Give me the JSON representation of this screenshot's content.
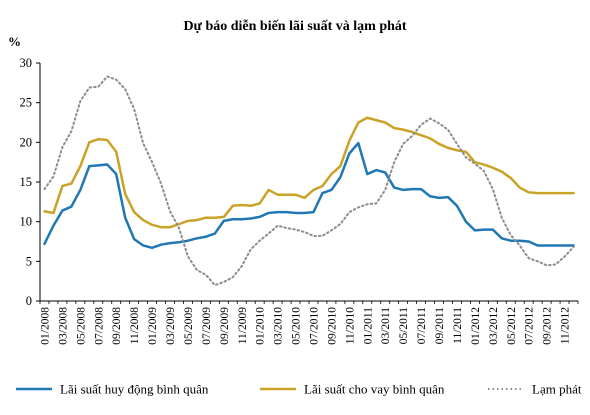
{
  "chart_data": {
    "type": "line",
    "title": "Dự báo diễn biến lãi suất và lạm phát",
    "ylabel": "%",
    "ylim": [
      0,
      30
    ],
    "yticks": [
      0,
      5,
      10,
      15,
      20,
      25,
      30
    ],
    "grid": false,
    "legend_position": "bottom",
    "x": [
      "01/2008",
      "02/2008",
      "03/2008",
      "04/2008",
      "05/2008",
      "06/2008",
      "07/2008",
      "08/2008",
      "09/2008",
      "10/2008",
      "11/2008",
      "12/2008",
      "01/2009",
      "02/2009",
      "03/2009",
      "04/2009",
      "05/2009",
      "06/2009",
      "07/2009",
      "08/2009",
      "09/2009",
      "10/2009",
      "11/2009",
      "12/2009",
      "01/2010",
      "02/2010",
      "03/2010",
      "04/2010",
      "05/2010",
      "06/2010",
      "07/2010",
      "08/2010",
      "09/2010",
      "10/2010",
      "11/2010",
      "12/2010",
      "01/2011",
      "02/2011",
      "03/2011",
      "04/2011",
      "05/2011",
      "06/2011",
      "07/2011",
      "08/2011",
      "09/2011",
      "10/2011",
      "11/2011",
      "12/2011",
      "01/2012",
      "02/2012",
      "03/2012",
      "04/2012",
      "05/2012",
      "06/2012",
      "07/2012",
      "08/2012",
      "09/2012",
      "10/2012",
      "11/2012",
      "12/2012"
    ],
    "xtick_labels": [
      "01/2008",
      "03/2008",
      "05/2008",
      "07/2008",
      "09/2008",
      "11/2008",
      "01/2009",
      "03/2009",
      "05/2009",
      "07/2009",
      "09/2009",
      "11/2009",
      "01/2010",
      "03/2010",
      "05/2010",
      "07/2010",
      "09/2010",
      "11/2010",
      "01/2011",
      "03/2011",
      "05/2011",
      "07/2011",
      "09/2011",
      "11/2011",
      "01/2012",
      "03/2012",
      "05/2012",
      "07/2012",
      "09/2012",
      "11/2012"
    ],
    "series": [
      {
        "name": "Lãi suất huy động bình quân",
        "color": "#1f77b4",
        "style": "solid",
        "values": [
          7.2,
          9.5,
          11.4,
          11.9,
          14.0,
          17.0,
          17.1,
          17.2,
          16.0,
          10.5,
          7.8,
          7.0,
          6.7,
          7.1,
          7.3,
          7.4,
          7.6,
          7.9,
          8.1,
          8.5,
          10.1,
          10.3,
          10.3,
          10.4,
          10.6,
          11.1,
          11.2,
          11.2,
          11.1,
          11.1,
          11.2,
          13.6,
          14.0,
          15.6,
          18.6,
          19.9,
          16.0,
          16.5,
          16.2,
          14.3,
          14.0,
          14.1,
          14.1,
          13.2,
          13.0,
          13.1,
          12.0,
          10.0,
          8.9,
          9.0,
          9.0,
          7.9,
          7.6,
          7.6,
          7.5,
          7.0,
          7.0,
          7.0,
          7.0,
          7.0
        ]
      },
      {
        "name": "Lãi suất cho vay bình quân",
        "color": "#c9a227",
        "style": "solid",
        "values": [
          11.3,
          11.1,
          14.5,
          14.8,
          17.0,
          20.0,
          20.4,
          20.3,
          18.8,
          13.5,
          11.2,
          10.2,
          9.6,
          9.3,
          9.3,
          9.7,
          10.1,
          10.2,
          10.5,
          10.5,
          10.6,
          12.0,
          12.1,
          12.0,
          12.3,
          14.0,
          13.4,
          13.4,
          13.4,
          13.0,
          14.0,
          14.5,
          16.0,
          17.0,
          20.2,
          22.5,
          23.1,
          22.8,
          22.5,
          21.8,
          21.6,
          21.3,
          20.9,
          20.5,
          19.8,
          19.3,
          19.0,
          18.8,
          17.5,
          17.2,
          16.8,
          16.3,
          15.5,
          14.3,
          13.7,
          13.6,
          13.6,
          13.6,
          13.6,
          13.6
        ]
      },
      {
        "name": "Lạm phát",
        "color": "#8c8c8c",
        "style": "dotted",
        "values": [
          14.1,
          15.7,
          19.4,
          21.4,
          25.2,
          26.9,
          27.0,
          28.3,
          27.9,
          26.7,
          24.2,
          19.9,
          17.5,
          14.8,
          11.3,
          9.2,
          5.6,
          3.9,
          3.3,
          2.0,
          2.4,
          3.0,
          4.4,
          6.5,
          7.6,
          8.5,
          9.5,
          9.2,
          9.0,
          8.7,
          8.2,
          8.2,
          8.9,
          9.7,
          11.2,
          11.8,
          12.2,
          12.3,
          14.0,
          17.5,
          19.8,
          20.8,
          22.2,
          23.0,
          22.4,
          21.6,
          19.8,
          18.1,
          17.3,
          16.4,
          14.1,
          10.5,
          8.3,
          7.0,
          5.4,
          5.0,
          4.5,
          4.6,
          5.6,
          6.8
        ]
      }
    ]
  }
}
